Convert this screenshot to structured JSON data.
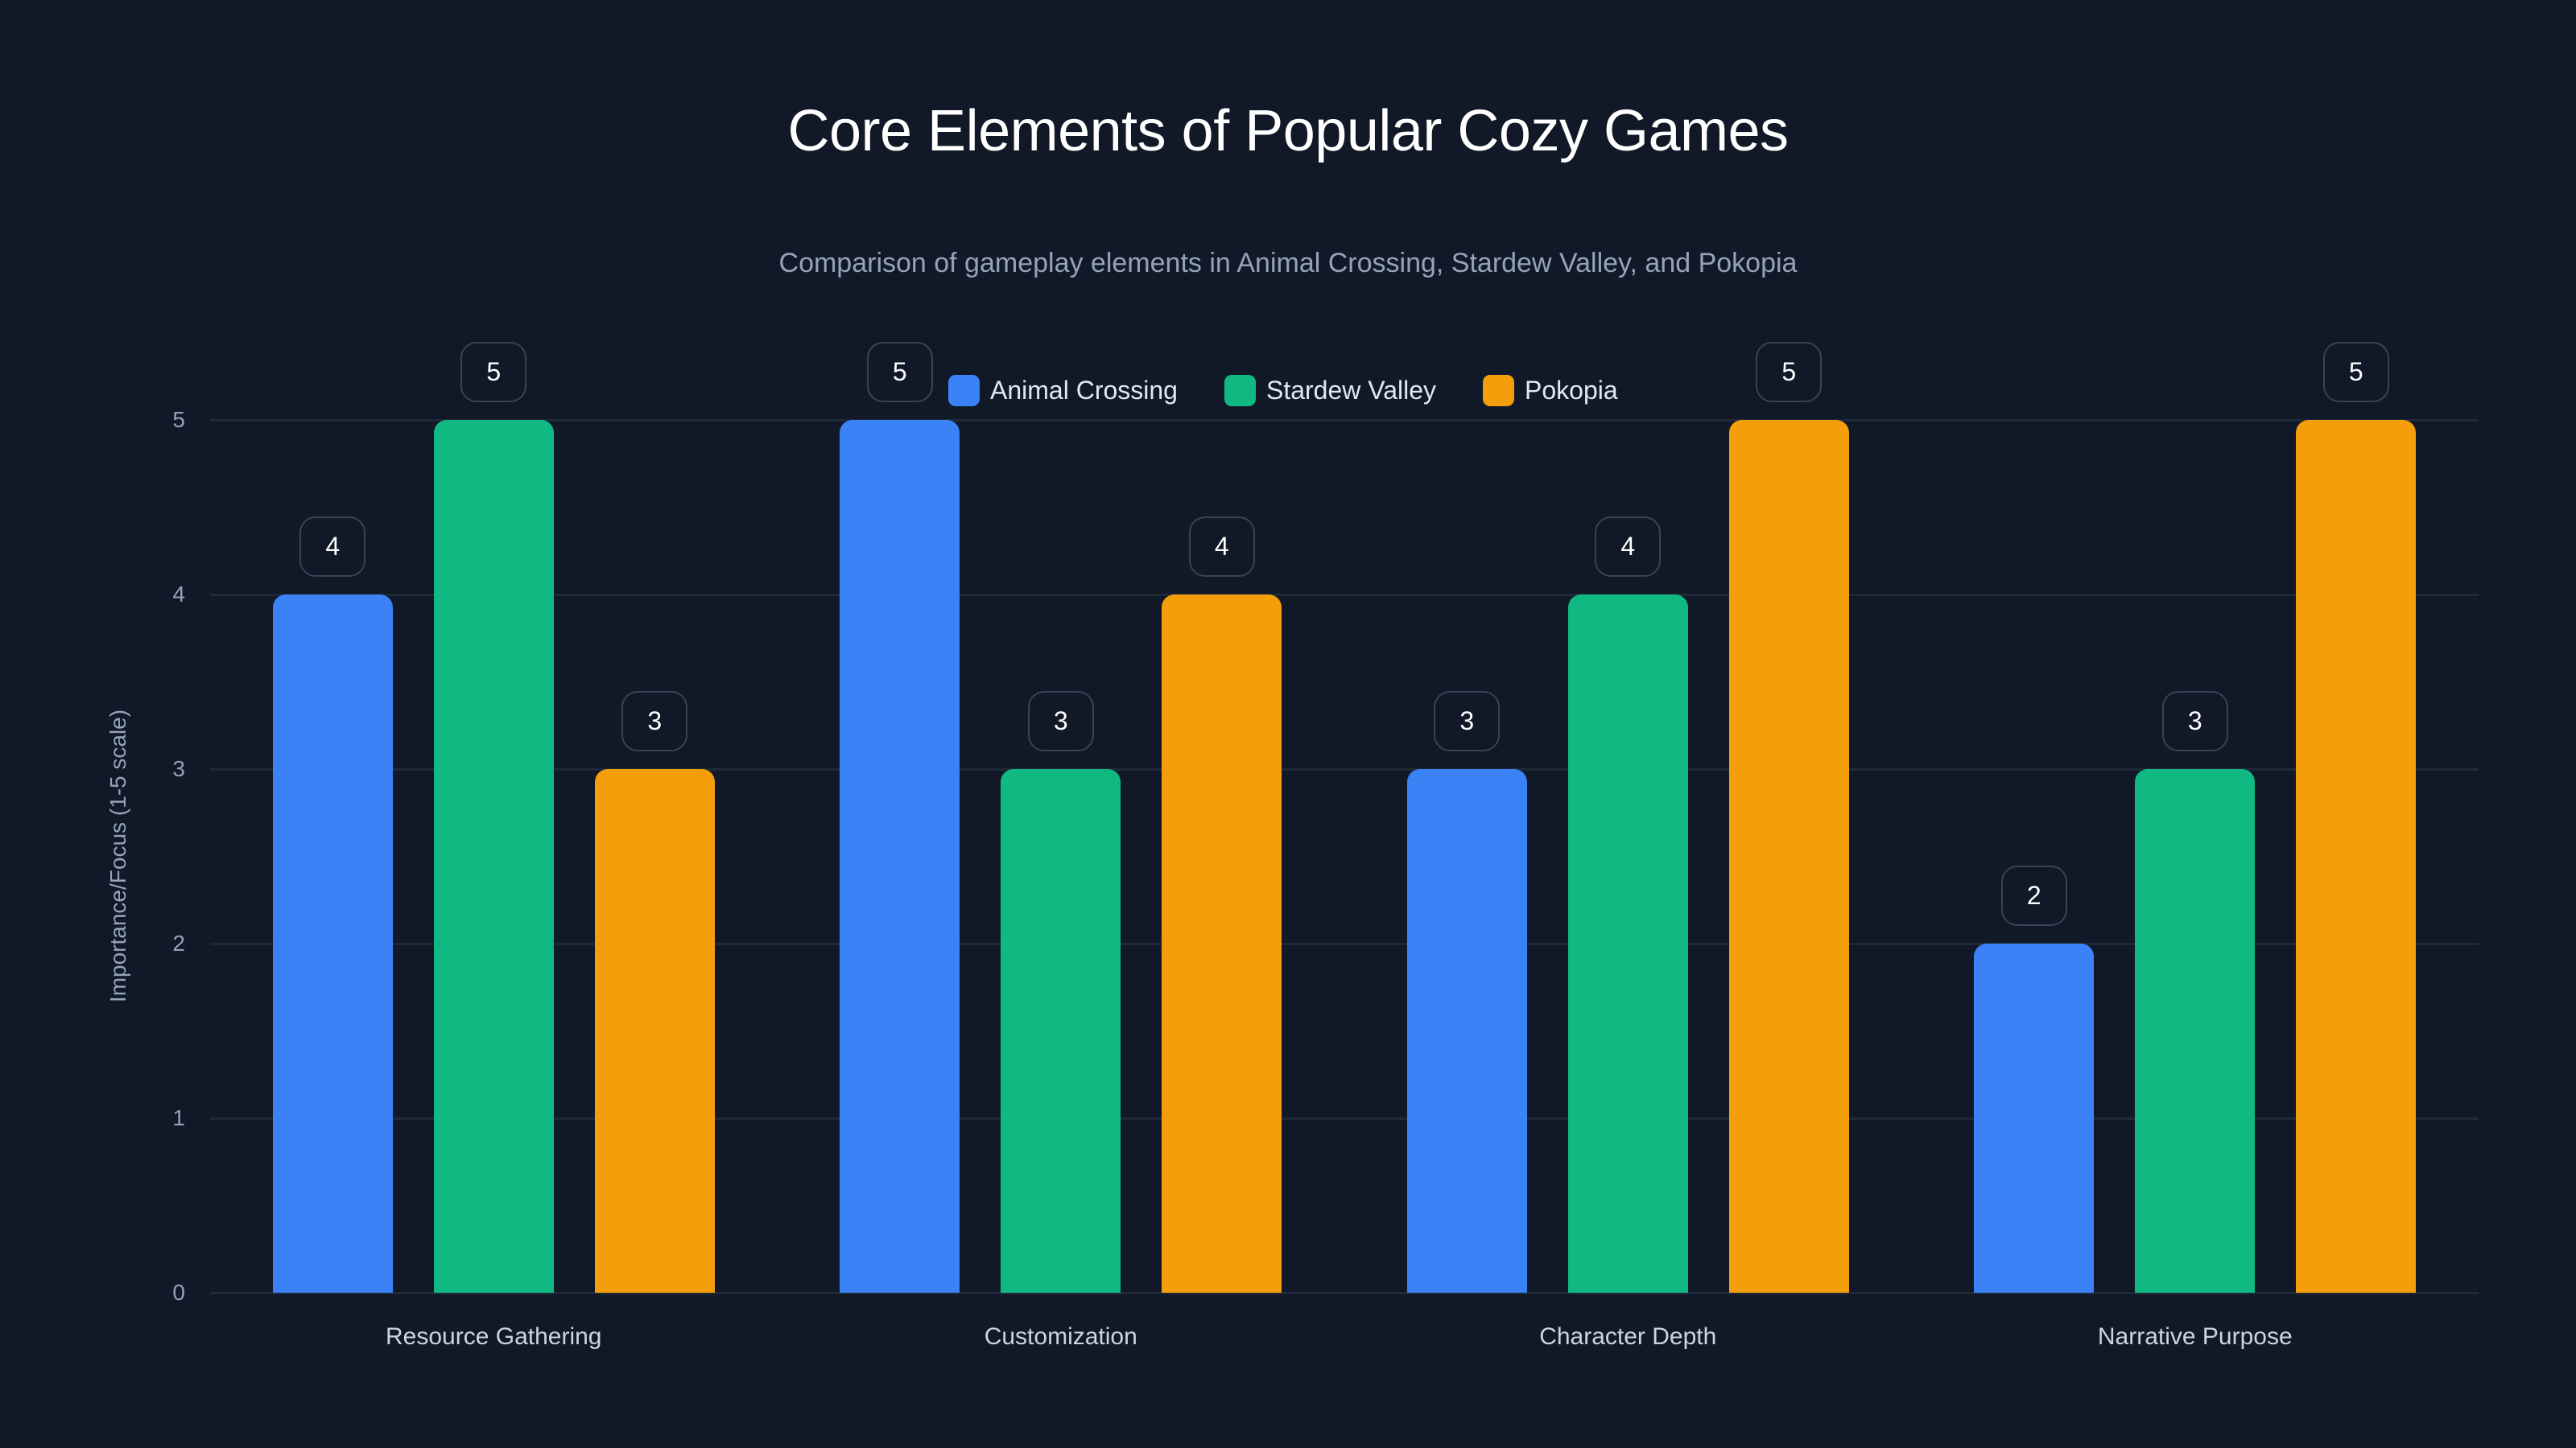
{
  "chart_data": {
    "type": "bar",
    "title": "Core Elements of Popular Cozy Games",
    "subtitle": "Comparison of gameplay elements in Animal Crossing, Stardew Valley, and Pokopia",
    "xlabel": "",
    "ylabel": "Importance/Focus (1-5 scale)",
    "categories": [
      "Resource Gathering",
      "Customization",
      "Character Depth",
      "Narrative Purpose"
    ],
    "series": [
      {
        "name": "Animal Crossing",
        "color": "#3b82f6",
        "values": [
          4,
          5,
          3,
          2
        ]
      },
      {
        "name": "Stardew Valley",
        "color": "#10b981",
        "values": [
          5,
          3,
          4,
          3
        ]
      },
      {
        "name": "Pokopia",
        "color": "#f59e0b",
        "values": [
          3,
          4,
          5,
          5
        ]
      }
    ],
    "ylim": [
      0,
      5
    ],
    "yticks": [
      "0",
      "1",
      "2",
      "3",
      "4",
      "5"
    ],
    "grid": true,
    "legend_position": "top",
    "data_labels": true
  },
  "colors": {
    "background": "#111827",
    "gridline": "#1f2937",
    "badge_border": "#3a4354"
  }
}
